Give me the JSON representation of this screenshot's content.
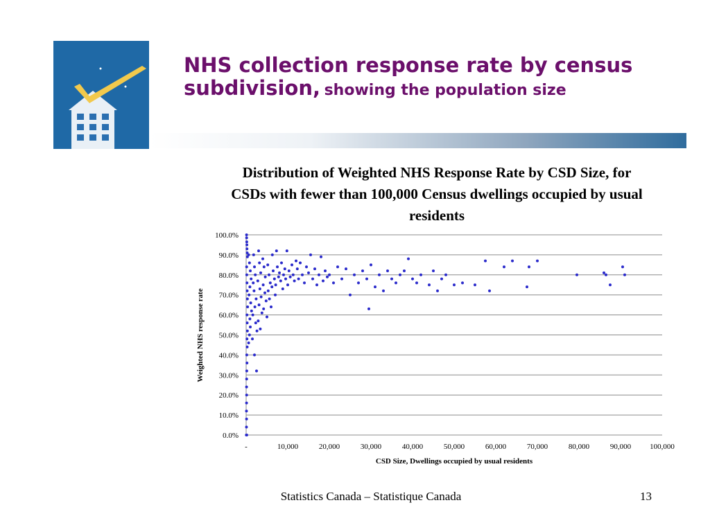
{
  "slide": {
    "title_main": "NHS collection response rate by census subdivision,",
    "title_sub": "showing the population size",
    "footer": "Statistics Canada – Statistique Canada",
    "page_number": "13"
  },
  "logo": {
    "icon": "building-checkmark-icon",
    "background": "#1f69a6",
    "check_color": "#f2c94c"
  },
  "colors": {
    "title": "#6b0f6b",
    "points": "#2a2acb",
    "gridline": "#8c8c8c"
  },
  "chart_data": {
    "type": "scatter",
    "title": "Distribution of Weighted NHS Response Rate by CSD Size, for CSDs with fewer than 100,000 Census dwellings occupied by usual residents",
    "xlabel": "CSD Size, Dwellings occupied by usual residents",
    "ylabel": "Weighted NHS response rate",
    "xlim": [
      0,
      100000
    ],
    "ylim": [
      0,
      1
    ],
    "x_ticks": [
      "-",
      "10,000",
      "20,000",
      "30,000",
      "40,000",
      "50,000",
      "60,000",
      "70,000",
      "80,000",
      "90,000",
      "100,000"
    ],
    "y_ticks": [
      "0.0%",
      "10.0%",
      "20.0%",
      "30.0%",
      "40.0%",
      "50.0%",
      "60.0%",
      "70.0%",
      "80.0%",
      "90.0%",
      "100.0%"
    ],
    "grid": "horizontal",
    "legend": "none",
    "points": [
      [
        100,
        1.0
      ],
      [
        120,
        0.985
      ],
      [
        150,
        0.965
      ],
      [
        180,
        0.95
      ],
      [
        200,
        0.93
      ],
      [
        250,
        0.91
      ],
      [
        300,
        0.89
      ],
      [
        120,
        0.84
      ],
      [
        150,
        0.8
      ],
      [
        200,
        0.76
      ],
      [
        250,
        0.72
      ],
      [
        300,
        0.68
      ],
      [
        350,
        0.64
      ],
      [
        200,
        0.6
      ],
      [
        250,
        0.56
      ],
      [
        300,
        0.52
      ],
      [
        200,
        0.48
      ],
      [
        250,
        0.44
      ],
      [
        150,
        0.4
      ],
      [
        200,
        0.36
      ],
      [
        150,
        0.32
      ],
      [
        120,
        0.28
      ],
      [
        100,
        0.24
      ],
      [
        120,
        0.2
      ],
      [
        100,
        0.16
      ],
      [
        80,
        0.12
      ],
      [
        100,
        0.08
      ],
      [
        80,
        0.04
      ],
      [
        50,
        0.0
      ],
      [
        150,
        0.0
      ],
      [
        600,
        0.9
      ],
      [
        800,
        0.86
      ],
      [
        1000,
        0.82
      ],
      [
        1200,
        0.78
      ],
      [
        900,
        0.74
      ],
      [
        700,
        0.7
      ],
      [
        1100,
        0.66
      ],
      [
        1300,
        0.62
      ],
      [
        900,
        0.58
      ],
      [
        1000,
        0.54
      ],
      [
        800,
        0.5
      ],
      [
        600,
        0.46
      ],
      [
        1800,
        0.9
      ],
      [
        2000,
        0.84
      ],
      [
        2200,
        0.8
      ],
      [
        1700,
        0.76
      ],
      [
        1900,
        0.72
      ],
      [
        2400,
        0.68
      ],
      [
        2100,
        0.64
      ],
      [
        1600,
        0.6
      ],
      [
        2300,
        0.56
      ],
      [
        2600,
        0.52
      ],
      [
        1500,
        0.48
      ],
      [
        2000,
        0.4
      ],
      [
        2500,
        0.32
      ],
      [
        3000,
        0.92
      ],
      [
        3200,
        0.86
      ],
      [
        3500,
        0.81
      ],
      [
        2800,
        0.77
      ],
      [
        3300,
        0.73
      ],
      [
        3600,
        0.69
      ],
      [
        3100,
        0.65
      ],
      [
        3800,
        0.61
      ],
      [
        2900,
        0.57
      ],
      [
        3400,
        0.53
      ],
      [
        4000,
        0.88
      ],
      [
        4300,
        0.84
      ],
      [
        4600,
        0.79
      ],
      [
        4100,
        0.75
      ],
      [
        4500,
        0.71
      ],
      [
        4800,
        0.67
      ],
      [
        4200,
        0.63
      ],
      [
        5000,
        0.59
      ],
      [
        5200,
        0.85
      ],
      [
        5500,
        0.8
      ],
      [
        5800,
        0.76
      ],
      [
        5300,
        0.72
      ],
      [
        5600,
        0.68
      ],
      [
        6000,
        0.64
      ],
      [
        6300,
        0.9
      ],
      [
        6500,
        0.82
      ],
      [
        6800,
        0.78
      ],
      [
        6200,
        0.74
      ],
      [
        7000,
        0.7
      ],
      [
        7300,
        0.92
      ],
      [
        7500,
        0.84
      ],
      [
        7800,
        0.79
      ],
      [
        7100,
        0.75
      ],
      [
        8000,
        0.81
      ],
      [
        8300,
        0.77
      ],
      [
        8500,
        0.86
      ],
      [
        8800,
        0.73
      ],
      [
        9000,
        0.8
      ],
      [
        9300,
        0.83
      ],
      [
        9500,
        0.78
      ],
      [
        9800,
        0.92
      ],
      [
        10000,
        0.75
      ],
      [
        10300,
        0.82
      ],
      [
        10600,
        0.79
      ],
      [
        11000,
        0.85
      ],
      [
        11300,
        0.8
      ],
      [
        11600,
        0.77
      ],
      [
        12000,
        0.87
      ],
      [
        12300,
        0.83
      ],
      [
        12600,
        0.78
      ],
      [
        13000,
        0.86
      ],
      [
        13500,
        0.8
      ],
      [
        14000,
        0.76
      ],
      [
        14500,
        0.84
      ],
      [
        15000,
        0.81
      ],
      [
        15500,
        0.9
      ],
      [
        16000,
        0.78
      ],
      [
        16500,
        0.83
      ],
      [
        17000,
        0.75
      ],
      [
        17500,
        0.8
      ],
      [
        18000,
        0.89
      ],
      [
        18500,
        0.77
      ],
      [
        19000,
        0.82
      ],
      [
        19500,
        0.79
      ],
      [
        20000,
        0.8
      ],
      [
        21000,
        0.76
      ],
      [
        22000,
        0.84
      ],
      [
        23000,
        0.78
      ],
      [
        24000,
        0.83
      ],
      [
        25000,
        0.7
      ],
      [
        26000,
        0.8
      ],
      [
        27000,
        0.76
      ],
      [
        28000,
        0.82
      ],
      [
        29000,
        0.78
      ],
      [
        29500,
        0.63
      ],
      [
        30000,
        0.85
      ],
      [
        31000,
        0.74
      ],
      [
        32000,
        0.8
      ],
      [
        33000,
        0.72
      ],
      [
        34000,
        0.82
      ],
      [
        35000,
        0.78
      ],
      [
        36000,
        0.76
      ],
      [
        37000,
        0.8
      ],
      [
        38000,
        0.82
      ],
      [
        39000,
        0.88
      ],
      [
        40000,
        0.78
      ],
      [
        41000,
        0.76
      ],
      [
        42000,
        0.8
      ],
      [
        44000,
        0.75
      ],
      [
        45000,
        0.82
      ],
      [
        46000,
        0.72
      ],
      [
        47000,
        0.78
      ],
      [
        48000,
        0.8
      ],
      [
        50000,
        0.75
      ],
      [
        52000,
        0.76
      ],
      [
        55000,
        0.75
      ],
      [
        57500,
        0.87
      ],
      [
        58500,
        0.72
      ],
      [
        62000,
        0.84
      ],
      [
        64000,
        0.87
      ],
      [
        67500,
        0.74
      ],
      [
        68000,
        0.84
      ],
      [
        70000,
        0.87
      ],
      [
        79500,
        0.8
      ],
      [
        86000,
        0.81
      ],
      [
        86500,
        0.8
      ],
      [
        87500,
        0.75
      ],
      [
        90500,
        0.84
      ],
      [
        91000,
        0.8
      ]
    ]
  }
}
